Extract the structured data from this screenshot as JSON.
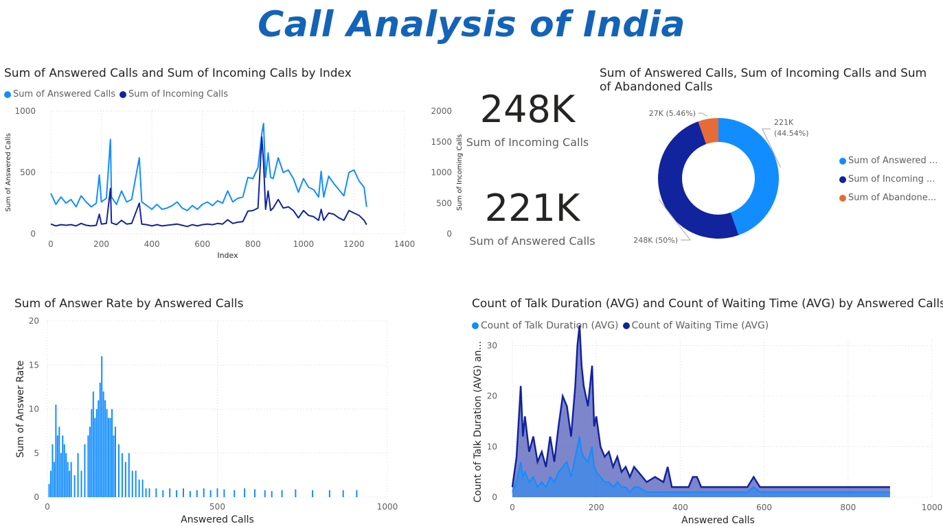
{
  "title": "Call Analysis of India",
  "colors": {
    "light_blue": "#118dff",
    "dark_blue": "#12239e",
    "orange": "#e66c37",
    "title_blue": "#1363b8"
  },
  "kpis": [
    {
      "value": "248K",
      "label": "Sum of Incoming Calls"
    },
    {
      "value": "221K",
      "label": "Sum of Answered Calls"
    }
  ],
  "donut_legend": [
    "Sum of Answered ...",
    "Sum of Incoming ...",
    "Sum of Abandone..."
  ],
  "chart_data": [
    {
      "id": "index_chart",
      "type": "line",
      "title": "Sum of Answered Calls and Sum of Incoming Calls by Index",
      "xlabel": "Index",
      "ylabel": "Sum of Answered Calls",
      "y2label": "Sum of Incoming Calls",
      "xlim": [
        0,
        1400
      ],
      "ylim": [
        0,
        1000
      ],
      "y2lim": [
        0,
        2000
      ],
      "xticks": [
        0,
        200,
        400,
        600,
        800,
        1000,
        1200,
        1400
      ],
      "yticks": [
        0,
        500,
        1000
      ],
      "y2ticks": [
        0,
        500,
        1000,
        1500,
        2000
      ],
      "x": [
        0,
        20,
        40,
        60,
        80,
        100,
        120,
        140,
        160,
        180,
        192,
        200,
        220,
        236,
        240,
        260,
        280,
        300,
        320,
        350,
        360,
        380,
        400,
        420,
        440,
        460,
        480,
        500,
        520,
        540,
        560,
        580,
        600,
        620,
        640,
        660,
        680,
        700,
        720,
        740,
        760,
        780,
        800,
        820,
        835,
        842,
        850,
        860,
        870,
        880,
        900,
        920,
        940,
        960,
        980,
        1000,
        1020,
        1040,
        1060,
        1070,
        1080,
        1100,
        1120,
        1140,
        1160,
        1180,
        1200,
        1220,
        1240,
        1250
      ],
      "series": [
        {
          "name": "Sum of Answered Calls",
          "axis": "left",
          "values": [
            330,
            240,
            300,
            250,
            280,
            220,
            310,
            260,
            220,
            250,
            480,
            260,
            290,
            770,
            300,
            240,
            350,
            260,
            280,
            620,
            260,
            230,
            200,
            240,
            200,
            210,
            230,
            260,
            210,
            190,
            230,
            200,
            240,
            260,
            230,
            270,
            250,
            350,
            260,
            290,
            300,
            460,
            450,
            540,
            820,
            900,
            460,
            660,
            460,
            450,
            620,
            500,
            520,
            450,
            340,
            450,
            380,
            360,
            300,
            510,
            300,
            470,
            410,
            360,
            310,
            500,
            520,
            430,
            380,
            220
          ]
        },
        {
          "name": "Sum of Incoming Calls",
          "axis": "right",
          "values": [
            160,
            130,
            150,
            140,
            150,
            130,
            170,
            140,
            130,
            140,
            320,
            160,
            170,
            740,
            180,
            150,
            220,
            160,
            170,
            500,
            160,
            150,
            130,
            150,
            130,
            140,
            150,
            160,
            140,
            120,
            150,
            130,
            150,
            160,
            150,
            170,
            160,
            230,
            170,
            190,
            200,
            370,
            380,
            420,
            1580,
            1160,
            400,
            700,
            380,
            420,
            560,
            420,
            440,
            380,
            260,
            380,
            300,
            280,
            220,
            400,
            220,
            340,
            320,
            260,
            220,
            380,
            340,
            300,
            220,
            150
          ]
        }
      ]
    },
    {
      "id": "donut_chart",
      "type": "pie",
      "title": "Sum of Answered Calls, Sum of Incoming Calls and Sum of Abandoned Calls",
      "series": [
        {
          "name": "Sum of Answered Calls",
          "value": 221,
          "label": "221K (44.54%)"
        },
        {
          "name": "Sum of Incoming Calls",
          "value": 248,
          "label": "248K (50%)"
        },
        {
          "name": "Sum of Abandoned Calls",
          "value": 27,
          "label": "27K (5.46%)"
        }
      ]
    },
    {
      "id": "rate_chart",
      "type": "bar",
      "title": "Sum of Answer Rate by Answered Calls",
      "xlabel": "Answered Calls",
      "ylabel": "Sum of Answer Rate",
      "xlim": [
        0,
        1000
      ],
      "ylim": [
        0,
        20
      ],
      "xticks": [
        0,
        500,
        1000
      ],
      "yticks": [
        0,
        5,
        10,
        15,
        20
      ],
      "x": [
        5,
        10,
        15,
        20,
        25,
        30,
        35,
        40,
        45,
        50,
        55,
        60,
        65,
        70,
        80,
        90,
        100,
        110,
        120,
        125,
        130,
        135,
        140,
        145,
        150,
        155,
        160,
        165,
        170,
        175,
        180,
        185,
        190,
        195,
        200,
        210,
        220,
        230,
        240,
        250,
        260,
        270,
        280,
        290,
        300,
        320,
        340,
        360,
        380,
        400,
        420,
        440,
        460,
        480,
        500,
        520,
        550,
        580,
        610,
        640,
        660,
        690,
        730,
        780,
        830,
        870,
        910
      ],
      "values": [
        1.5,
        3,
        6,
        4,
        10.5,
        7,
        8,
        5,
        7,
        6,
        5,
        4,
        3,
        4,
        2.5,
        5,
        3,
        6,
        7,
        8,
        10,
        12,
        9,
        10,
        11,
        13,
        16,
        12,
        11,
        10,
        9,
        9,
        10,
        7,
        8,
        6,
        5,
        4,
        5,
        3,
        3,
        2,
        2,
        1,
        1,
        1,
        0.8,
        1,
        0.8,
        1,
        0.7,
        0.8,
        1,
        0.8,
        1,
        0.9,
        0.8,
        1,
        0.9,
        0.8,
        0.7,
        0.8,
        0.9,
        0.8,
        0.8,
        0.8,
        0.8
      ]
    },
    {
      "id": "duration_chart",
      "type": "area",
      "title": "Count of Talk Duration (AVG) and Count of Waiting Time (AVG) by Answered Calls",
      "xlabel": "Answered Calls",
      "ylabel": "Count of Talk Duration (AVG) an...",
      "xlim": [
        0,
        1000
      ],
      "ylim": [
        0,
        35
      ],
      "xticks": [
        0,
        200,
        400,
        600,
        800,
        1000
      ],
      "yticks": [
        0,
        10,
        20,
        30
      ],
      "x": [
        0,
        10,
        20,
        25,
        30,
        40,
        50,
        60,
        70,
        80,
        90,
        100,
        110,
        120,
        130,
        140,
        150,
        155,
        160,
        165,
        170,
        180,
        190,
        195,
        200,
        210,
        220,
        230,
        240,
        250,
        260,
        270,
        280,
        290,
        300,
        320,
        340,
        360,
        370,
        380,
        420,
        430,
        440,
        450,
        500,
        560,
        575,
        590,
        600,
        700,
        800,
        900
      ],
      "series": [
        {
          "name": "Count of Talk Duration (AVG)",
          "values": [
            1,
            3,
            7,
            4,
            5,
            3,
            4,
            2,
            3,
            2,
            4,
            3,
            5,
            6,
            7,
            4,
            8,
            10,
            12,
            9,
            8,
            7,
            10,
            6,
            5,
            4,
            3,
            3,
            2,
            3,
            2,
            2,
            1,
            2,
            2,
            1,
            1,
            1,
            1,
            1,
            1,
            1,
            1,
            1,
            1,
            1,
            2,
            1,
            1,
            1,
            1,
            1
          ]
        },
        {
          "name": "Count of Waiting Time (AVG)",
          "values": [
            2,
            8,
            22,
            12,
            16,
            9,
            12,
            7,
            9,
            6,
            12,
            7,
            14,
            20,
            18,
            12,
            22,
            30,
            34,
            26,
            22,
            18,
            26,
            14,
            16,
            10,
            8,
            9,
            6,
            8,
            5,
            6,
            4,
            6,
            5,
            3,
            4,
            3,
            6,
            2,
            2,
            4,
            4,
            2,
            2,
            2,
            4,
            2,
            2,
            2,
            2,
            2
          ]
        }
      ]
    }
  ]
}
